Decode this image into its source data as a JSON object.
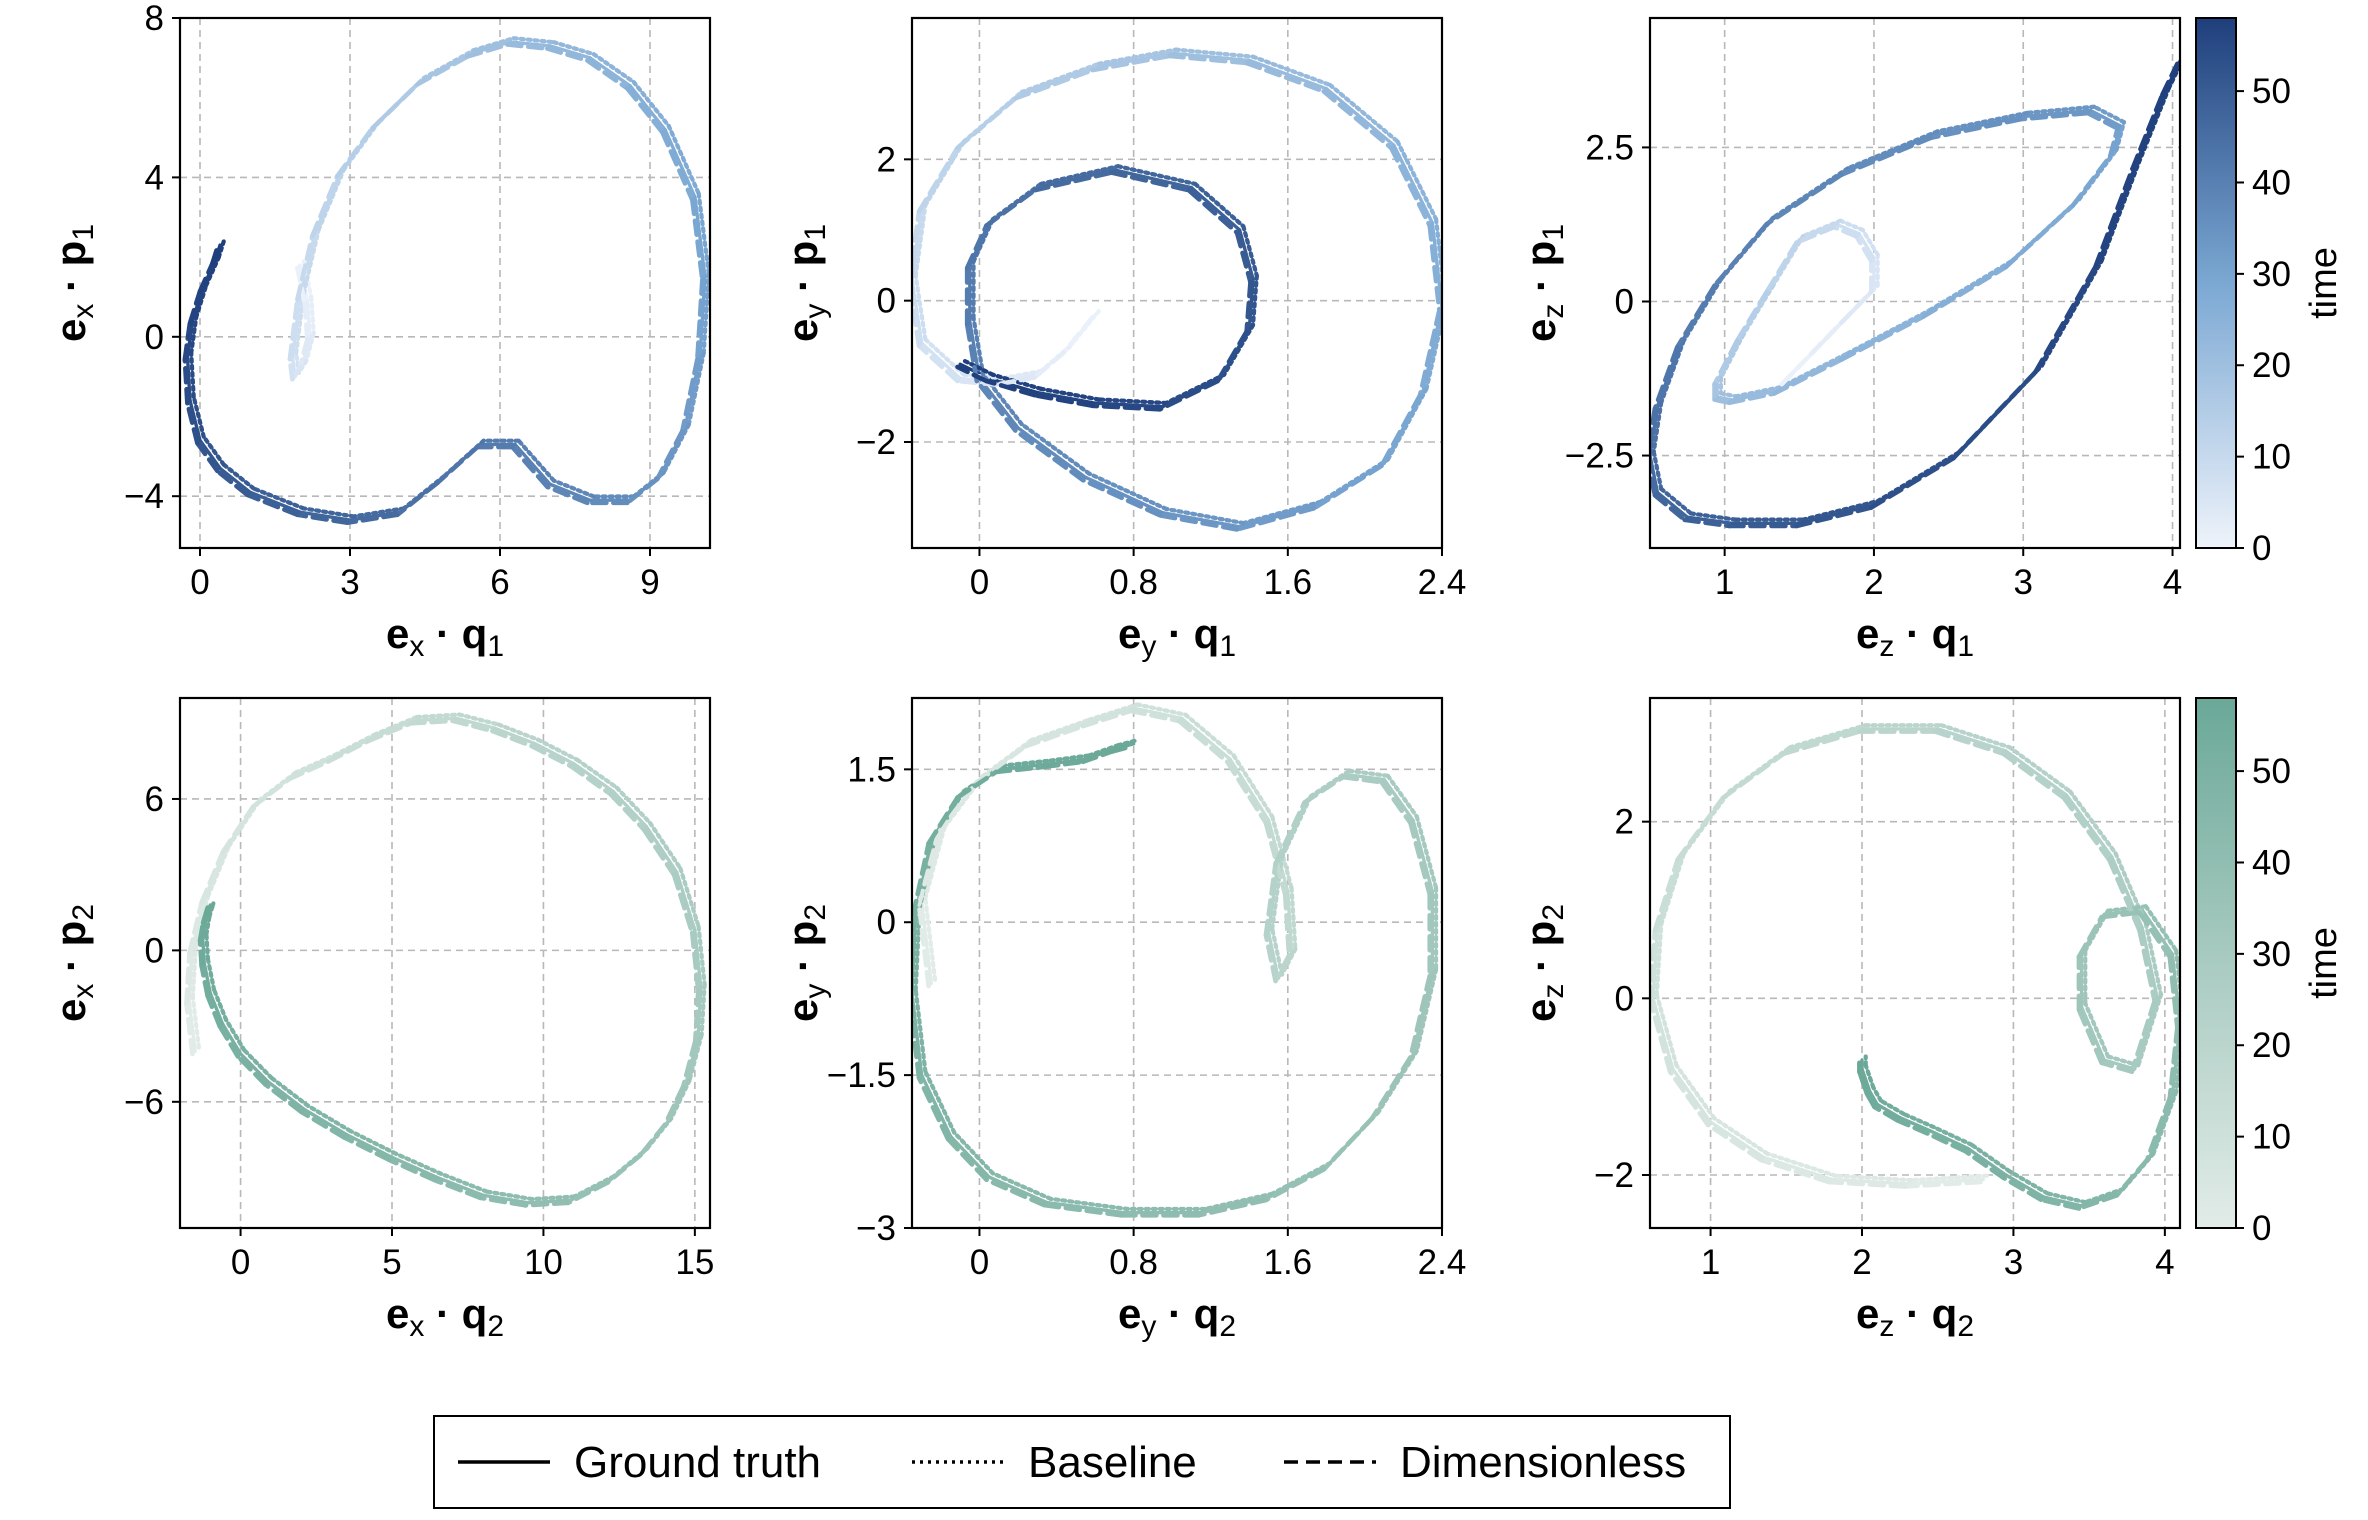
{
  "legend": {
    "items": [
      {
        "label": "Ground truth",
        "dash": "solid"
      },
      {
        "label": "Baseline",
        "dash": "dotted"
      },
      {
        "label": "Dimensionless",
        "dash": "dashed"
      }
    ]
  },
  "colorbars": [
    {
      "label": "time",
      "range": [
        0,
        58
      ],
      "ticks": [
        0,
        10,
        20,
        30,
        40,
        50
      ],
      "colormap": [
        "#eef3fb",
        "#1f3f7c"
      ]
    },
    {
      "label": "time",
      "range": [
        0,
        58
      ],
      "ticks": [
        0,
        10,
        20,
        30,
        40,
        50
      ],
      "colormap": [
        "#e2ece8",
        "#6aa898"
      ]
    }
  ],
  "chart_data": [
    {
      "type": "line",
      "xlabel": {
        "vec": "e",
        "vsub": "x",
        "var": "q",
        "sub": "1"
      },
      "ylabel": {
        "vec": "e",
        "vsub": "x",
        "var": "p",
        "sub": "1"
      },
      "xlim": [
        -0.4,
        10.2
      ],
      "ylim": [
        -5.3,
        8.0
      ],
      "xticks": [
        "0",
        "3",
        "6",
        "9"
      ],
      "xtick_values": [
        0,
        3,
        6,
        9
      ],
      "yticks": [
        "−4",
        "0",
        "4",
        "8"
      ],
      "ytick_values": [
        -4,
        0,
        4,
        8
      ],
      "grid": true,
      "colorbar": 0,
      "series": [
        {
          "x": [
            2.0,
            2.15,
            2.2,
            2.05,
            1.9,
            1.85,
            2.0,
            2.3,
            2.8,
            3.5,
            4.4,
            5.4,
            6.2,
            7.0,
            7.8,
            8.6,
            9.3,
            9.9,
            10.1,
            10.0,
            9.7,
            9.2,
            8.6,
            7.8,
            7.0,
            6.3,
            5.6,
            4.8,
            4.0,
            3.0,
            2.0,
            1.0,
            0.4,
            0.0,
            -0.2,
            -0.25,
            -0.15,
            0.05,
            0.3,
            0.4
          ],
          "y": [
            1.8,
            0.9,
            0.0,
            -0.7,
            -1.0,
            -0.5,
            1.0,
            2.6,
            4.1,
            5.3,
            6.4,
            7.1,
            7.4,
            7.3,
            7.0,
            6.3,
            5.2,
            3.5,
            1.5,
            -0.5,
            -2.3,
            -3.5,
            -4.1,
            -4.1,
            -3.7,
            -2.7,
            -2.7,
            -3.6,
            -4.4,
            -4.6,
            -4.4,
            -3.9,
            -3.3,
            -2.6,
            -1.6,
            -0.5,
            0.4,
            1.2,
            1.9,
            2.3
          ],
          "t": [
            0,
            1.5,
            3,
            4.5,
            6,
            7.5,
            9,
            11,
            13,
            15,
            17,
            19,
            21,
            22.5,
            24,
            25.5,
            27,
            28.5,
            30,
            31.5,
            33,
            34.5,
            36,
            37.5,
            39,
            40.5,
            42,
            43.5,
            45,
            46.5,
            48,
            49.5,
            51,
            52.5,
            54,
            55,
            56,
            57,
            57.5,
            58
          ]
        }
      ]
    },
    {
      "type": "line",
      "xlabel": {
        "vec": "e",
        "vsub": "y",
        "var": "q",
        "sub": "1"
      },
      "ylabel": {
        "vec": "e",
        "vsub": "y",
        "var": "p",
        "sub": "1"
      },
      "xlim": [
        -0.35,
        2.4
      ],
      "ylim": [
        -3.5,
        4.0
      ],
      "xticks": [
        "0",
        "0.8",
        "1.6",
        "2.4"
      ],
      "xtick_values": [
        0,
        0.8,
        1.6,
        2.4
      ],
      "yticks": [
        "−2",
        "0",
        "2"
      ],
      "ytick_values": [
        -2,
        0,
        2
      ],
      "grid": true,
      "colorbar": 0,
      "series": [
        {
          "x": [
            0.6,
            0.45,
            0.3,
            0.1,
            -0.1,
            -0.3,
            -0.35,
            -0.3,
            -0.1,
            0.2,
            0.6,
            1.0,
            1.4,
            1.8,
            2.15,
            2.35,
            2.4,
            2.3,
            2.1,
            1.75,
            1.35,
            0.95,
            0.55,
            0.2,
            0.0,
            -0.05,
            -0.05,
            0.05,
            0.3,
            0.7,
            1.1,
            1.35,
            1.42,
            1.4,
            1.25,
            0.95,
            0.6,
            0.3,
            0.05,
            -0.1
          ],
          "y": [
            -0.2,
            -0.7,
            -1.05,
            -1.15,
            -1.1,
            -0.6,
            0.3,
            1.3,
            2.2,
            2.9,
            3.3,
            3.5,
            3.4,
            3.0,
            2.2,
            1.1,
            -0.1,
            -1.3,
            -2.3,
            -2.9,
            -3.2,
            -3.0,
            -2.5,
            -1.8,
            -1.1,
            -0.3,
            0.5,
            1.1,
            1.6,
            1.85,
            1.6,
            1.0,
            0.3,
            -0.4,
            -1.1,
            -1.5,
            -1.45,
            -1.3,
            -1.1,
            -0.9
          ],
          "t": [
            0,
            1.5,
            3,
            4.5,
            6,
            7.5,
            9,
            11,
            13,
            15,
            17,
            19,
            21,
            22.5,
            24,
            25.5,
            27,
            28.5,
            30,
            31.5,
            33,
            34.5,
            36,
            37.5,
            39,
            40.5,
            42,
            43.5,
            45,
            46.5,
            48,
            49.5,
            51,
            52.5,
            54,
            55,
            56,
            57,
            57.5,
            58
          ]
        }
      ]
    },
    {
      "type": "line",
      "xlabel": {
        "vec": "e",
        "vsub": "z",
        "var": "q",
        "sub": "1"
      },
      "ylabel": {
        "vec": "e",
        "vsub": "z",
        "var": "p",
        "sub": "1"
      },
      "xlim": [
        0.5,
        4.05
      ],
      "ylim": [
        -4.0,
        4.6
      ],
      "xticks": [
        "1",
        "2",
        "3",
        "4"
      ],
      "xtick_values": [
        1,
        2,
        3,
        4
      ],
      "yticks": [
        "−2.5",
        "0",
        "2.5"
      ],
      "ytick_values": [
        -2.5,
        0,
        2.5
      ],
      "grid": true,
      "colorbar": 0,
      "series": [
        {
          "x": [
            1.4,
            1.6,
            1.8,
            2.0,
            2.0,
            1.9,
            1.75,
            1.5,
            1.3,
            1.1,
            0.95,
            0.95,
            1.05,
            1.35,
            1.8,
            2.35,
            2.9,
            3.35,
            3.6,
            3.65,
            3.45,
            3.0,
            2.4,
            1.8,
            1.3,
            0.95,
            0.7,
            0.55,
            0.5,
            0.55,
            0.75,
            1.05,
            1.5,
            2.0,
            2.55,
            3.1,
            3.5,
            3.75,
            3.95,
            4.05
          ],
          "y": [
            -1.3,
            -0.8,
            -0.3,
            0.2,
            0.7,
            1.1,
            1.25,
            1.0,
            0.2,
            -0.6,
            -1.3,
            -1.55,
            -1.6,
            -1.45,
            -0.9,
            -0.2,
            0.6,
            1.6,
            2.4,
            2.85,
            3.1,
            3.0,
            2.7,
            2.1,
            1.3,
            0.3,
            -0.7,
            -1.7,
            -2.5,
            -3.1,
            -3.5,
            -3.6,
            -3.6,
            -3.3,
            -2.5,
            -1.1,
            0.6,
            2.2,
            3.4,
            3.9
          ],
          "t": [
            0,
            1.5,
            3,
            4.5,
            6,
            7.5,
            9,
            11,
            13,
            15,
            17,
            19,
            21,
            22.5,
            24,
            25.5,
            27,
            28.5,
            30,
            31.5,
            33,
            34.5,
            36,
            37.5,
            39,
            40.5,
            42,
            43.5,
            45,
            46.5,
            48,
            49.5,
            51,
            52.5,
            54,
            55,
            56,
            57,
            57.5,
            58
          ]
        }
      ]
    },
    {
      "type": "line",
      "xlabel": {
        "vec": "e",
        "vsub": "x",
        "var": "q",
        "sub": "2"
      },
      "ylabel": {
        "vec": "e",
        "vsub": "x",
        "var": "p",
        "sub": "2"
      },
      "xlim": [
        -2.0,
        15.5
      ],
      "ylim": [
        -11.0,
        10.0
      ],
      "xticks": [
        "0",
        "5",
        "10",
        "15"
      ],
      "xtick_values": [
        0,
        5,
        10,
        15
      ],
      "yticks": [
        "−6",
        "0",
        "6"
      ],
      "ytick_values": [
        -6,
        0,
        6
      ],
      "grid": true,
      "colorbar": 1,
      "series": [
        {
          "x": [
            -1.5,
            -1.7,
            -1.6,
            -1.2,
            -0.5,
            0.5,
            1.7,
            3.0,
            4.3,
            5.7,
            7.1,
            8.4,
            9.7,
            11.0,
            12.3,
            13.4,
            14.4,
            15.0,
            15.2,
            15.1,
            14.7,
            14.1,
            13.3,
            12.2,
            10.9,
            9.5,
            8.0,
            6.5,
            5.0,
            3.5,
            2.1,
            0.9,
            0.0,
            -0.6,
            -1.0,
            -1.2,
            -1.25,
            -1.15,
            -1.05,
            -1.0
          ],
          "y": [
            -4.0,
            -2.0,
            0.0,
            2.0,
            4.0,
            5.8,
            6.9,
            7.6,
            8.4,
            9.1,
            9.2,
            8.8,
            8.2,
            7.4,
            6.3,
            4.9,
            3.1,
            0.8,
            -1.5,
            -3.5,
            -5.3,
            -6.8,
            -8.0,
            -9.1,
            -9.9,
            -10.0,
            -9.7,
            -9.0,
            -8.2,
            -7.3,
            -6.3,
            -5.2,
            -4.1,
            -2.9,
            -1.7,
            -0.5,
            0.5,
            1.2,
            1.6,
            1.8
          ],
          "t": [
            0,
            1.5,
            3,
            4.5,
            6,
            7.5,
            9,
            11,
            13,
            15,
            17,
            19,
            21,
            22.5,
            24,
            25.5,
            27,
            28.5,
            30,
            31.5,
            33,
            34.5,
            36,
            37.5,
            39,
            40.5,
            42,
            43.5,
            45,
            46.5,
            48,
            49.5,
            51,
            52.5,
            54,
            55,
            56,
            57,
            57.5,
            58
          ]
        }
      ]
    },
    {
      "type": "line",
      "xlabel": {
        "vec": "e",
        "vsub": "y",
        "var": "q",
        "sub": "2"
      },
      "ylabel": {
        "vec": "e",
        "vsub": "y",
        "var": "p",
        "sub": "2"
      },
      "xlim": [
        -0.35,
        2.4
      ],
      "ylim": [
        -3.0,
        2.2
      ],
      "xticks": [
        "0",
        "0.8",
        "1.6",
        "2.4"
      ],
      "xtick_values": [
        0,
        0.8,
        1.6,
        2.4
      ],
      "yticks": [
        "−3",
        "−1.5",
        "0",
        "1.5"
      ],
      "ytick_values": [
        -3,
        -1.5,
        0,
        1.5
      ],
      "grid": true,
      "colorbar": 1,
      "series": [
        {
          "x": [
            -0.25,
            -0.3,
            -0.2,
            0.0,
            0.25,
            0.55,
            0.8,
            1.05,
            1.3,
            1.5,
            1.6,
            1.62,
            1.55,
            1.5,
            1.55,
            1.7,
            1.9,
            2.1,
            2.25,
            2.35,
            2.35,
            2.25,
            2.05,
            1.8,
            1.5,
            1.15,
            0.75,
            0.35,
            0.05,
            -0.15,
            -0.3,
            -0.35,
            -0.33,
            -0.25,
            -0.1,
            0.1,
            0.35,
            0.55,
            0.7,
            0.8
          ],
          "y": [
            -0.6,
            0.2,
            0.9,
            1.4,
            1.75,
            1.95,
            2.1,
            2.0,
            1.6,
            1.0,
            0.3,
            -0.3,
            -0.55,
            -0.1,
            0.6,
            1.2,
            1.45,
            1.4,
            1.0,
            0.3,
            -0.5,
            -1.3,
            -1.9,
            -2.4,
            -2.7,
            -2.85,
            -2.85,
            -2.75,
            -2.5,
            -2.1,
            -1.5,
            -0.7,
            0.1,
            0.8,
            1.25,
            1.5,
            1.55,
            1.6,
            1.7,
            1.75
          ],
          "t": [
            0,
            1.5,
            3,
            4.5,
            6,
            7.5,
            9,
            11,
            13,
            15,
            17,
            19,
            21,
            22.5,
            24,
            25.5,
            27,
            28.5,
            30,
            31.5,
            33,
            34.5,
            36,
            37.5,
            39,
            40.5,
            42,
            43.5,
            45,
            46.5,
            48,
            49.5,
            51,
            52.5,
            54,
            55,
            56,
            57,
            57.5,
            58
          ]
        }
      ]
    },
    {
      "type": "line",
      "xlabel": {
        "vec": "e",
        "vsub": "z",
        "var": "q",
        "sub": "2"
      },
      "ylabel": {
        "vec": "e",
        "vsub": "z",
        "var": "p",
        "sub": "2"
      },
      "xlim": [
        0.6,
        4.1
      ],
      "ylim": [
        -2.6,
        3.4
      ],
      "xticks": [
        "1",
        "2",
        "3",
        "4"
      ],
      "xtick_values": [
        1,
        2,
        3,
        4
      ],
      "yticks": [
        "−2",
        "0",
        "2"
      ],
      "ytick_values": [
        -2,
        0,
        2
      ],
      "grid": true,
      "colorbar": 1,
      "series": [
        {
          "x": [
            2.8,
            2.3,
            1.8,
            1.35,
            1.0,
            0.75,
            0.62,
            0.65,
            0.8,
            1.1,
            1.5,
            2.0,
            2.5,
            2.95,
            3.35,
            3.65,
            3.85,
            3.95,
            3.8,
            3.6,
            3.45,
            3.45,
            3.6,
            3.85,
            4.05,
            4.1,
            4.05,
            3.9,
            3.7,
            3.45,
            3.2,
            2.95,
            2.7,
            2.45,
            2.25,
            2.1,
            2.05,
            2.02,
            2.0,
            2.0
          ],
          "y": [
            -2.05,
            -2.1,
            -2.05,
            -1.8,
            -1.4,
            -0.8,
            0.0,
            0.8,
            1.6,
            2.3,
            2.8,
            3.05,
            3.05,
            2.8,
            2.3,
            1.6,
            0.8,
            0.0,
            -0.8,
            -0.7,
            -0.1,
            0.5,
            0.95,
            1.0,
            0.5,
            -0.3,
            -1.1,
            -1.8,
            -2.2,
            -2.35,
            -2.25,
            -2.0,
            -1.7,
            -1.5,
            -1.35,
            -1.2,
            -1.05,
            -0.9,
            -0.8,
            -0.7
          ],
          "t": [
            0,
            1.5,
            3,
            4.5,
            6,
            7.5,
            9,
            11,
            13,
            15,
            17,
            19,
            21,
            22.5,
            24,
            25.5,
            27,
            28.5,
            30,
            31.5,
            33,
            34.5,
            36,
            37.5,
            39,
            40.5,
            42,
            43.5,
            45,
            46.5,
            48,
            49.5,
            51,
            52.5,
            54,
            55,
            56,
            57,
            57.5,
            58
          ]
        }
      ]
    }
  ]
}
